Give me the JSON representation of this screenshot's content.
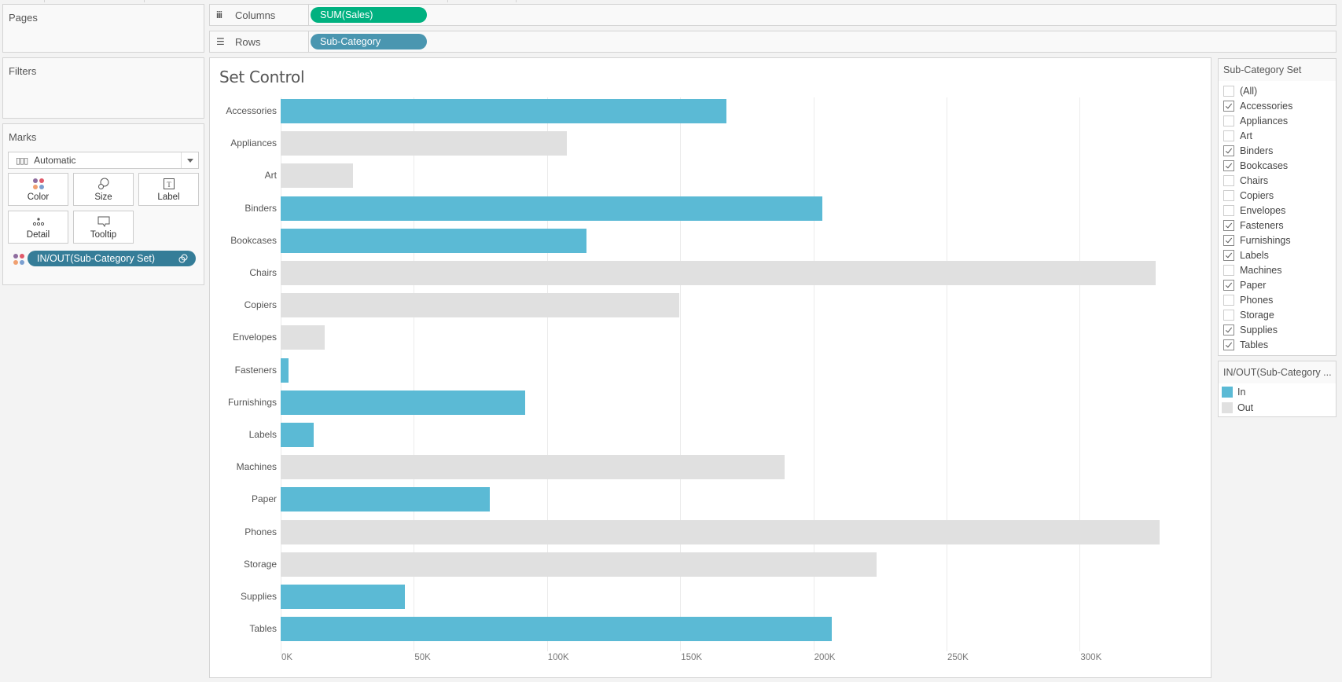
{
  "pages": {
    "title": "Pages"
  },
  "filters": {
    "title": "Filters"
  },
  "marks": {
    "title": "Marks",
    "mark_type": "Automatic",
    "buttons": [
      {
        "label": "Color",
        "icon": "color-icon"
      },
      {
        "label": "Size",
        "icon": "size-icon"
      },
      {
        "label": "Label",
        "icon": "label-icon"
      },
      {
        "label": "Detail",
        "icon": "detail-icon"
      },
      {
        "label": "Tooltip",
        "icon": "tooltip-icon"
      }
    ],
    "color_pill": "IN/OUT(Sub-Category Set)"
  },
  "shelves": {
    "columns": {
      "label": "Columns",
      "pill": "SUM(Sales)"
    },
    "rows": {
      "label": "Rows",
      "pill": "Sub-Category"
    }
  },
  "colors": {
    "in": "#5bbad5",
    "out": "#e0e0e0",
    "columns_pill": "#00b180",
    "rows_pill": "#4a96b0",
    "set_pill": "#357d98"
  },
  "chart_data": {
    "type": "bar",
    "title": "Set Control",
    "orientation": "horizontal",
    "xlabel": "",
    "ylabel": "",
    "xlim": [
      0,
      340000
    ],
    "x_ticks": [
      "0K",
      "50K",
      "100K",
      "150K",
      "200K",
      "250K",
      "300K"
    ],
    "grid": true,
    "legend_position": "right",
    "categories": [
      "Accessories",
      "Appliances",
      "Art",
      "Binders",
      "Bookcases",
      "Chairs",
      "Copiers",
      "Envelopes",
      "Fasteners",
      "Furnishings",
      "Labels",
      "Machines",
      "Paper",
      "Phones",
      "Storage",
      "Supplies",
      "Tables"
    ],
    "values": [
      167380,
      107532,
      27119,
      203413,
      114880,
      328449,
      149528,
      16476,
      3024,
      91705,
      12486,
      189239,
      78479,
      330007,
      223844,
      46674,
      206966
    ],
    "set_membership": [
      "In",
      "Out",
      "Out",
      "In",
      "In",
      "Out",
      "Out",
      "Out",
      "In",
      "In",
      "In",
      "Out",
      "In",
      "Out",
      "Out",
      "In",
      "In"
    ]
  },
  "set_filter": {
    "title": "Sub-Category Set",
    "items": [
      {
        "label": "(All)",
        "checked": false
      },
      {
        "label": "Accessories",
        "checked": true
      },
      {
        "label": "Appliances",
        "checked": false
      },
      {
        "label": "Art",
        "checked": false
      },
      {
        "label": "Binders",
        "checked": true
      },
      {
        "label": "Bookcases",
        "checked": true
      },
      {
        "label": "Chairs",
        "checked": false
      },
      {
        "label": "Copiers",
        "checked": false
      },
      {
        "label": "Envelopes",
        "checked": false
      },
      {
        "label": "Fasteners",
        "checked": true
      },
      {
        "label": "Furnishings",
        "checked": true
      },
      {
        "label": "Labels",
        "checked": true
      },
      {
        "label": "Machines",
        "checked": false
      },
      {
        "label": "Paper",
        "checked": true
      },
      {
        "label": "Phones",
        "checked": false
      },
      {
        "label": "Storage",
        "checked": false
      },
      {
        "label": "Supplies",
        "checked": true
      },
      {
        "label": "Tables",
        "checked": true
      }
    ]
  },
  "legend": {
    "title": "IN/OUT(Sub-Category ...",
    "items": [
      {
        "label": "In",
        "color": "#5bbad5"
      },
      {
        "label": "Out",
        "color": "#e0e0e0"
      }
    ]
  }
}
